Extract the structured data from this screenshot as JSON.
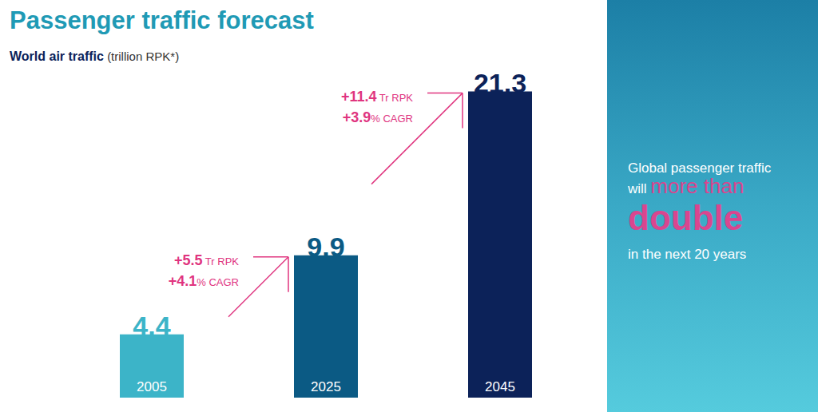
{
  "chart_data": {
    "type": "bar",
    "title": "Passenger traffic forecast",
    "subtitle": "World air traffic",
    "unit": "(trillion RPK*)",
    "categories": [
      "2005",
      "2025",
      "2045"
    ],
    "values": [
      4.4,
      9.9,
      21.3
    ],
    "colors": [
      "#3cb4c8",
      "#0b5a84",
      "#0c2259"
    ],
    "ylim": [
      0,
      24
    ],
    "data_labels": true,
    "tick_labels": "x",
    "grid": false,
    "annotations": [
      {
        "from": "2005",
        "to": "2025",
        "lines": [
          "+5.5 Tr RPK",
          "+4.1% CAGR"
        ]
      },
      {
        "from": "2025",
        "to": "2045",
        "lines": [
          "+11.4 Tr RPK",
          "+3.9% CAGR"
        ]
      }
    ],
    "callout": {
      "text": "Global passenger traffic will",
      "emphasis": "more than",
      "highlight": "double",
      "after": "in the next 20 years"
    }
  }
}
